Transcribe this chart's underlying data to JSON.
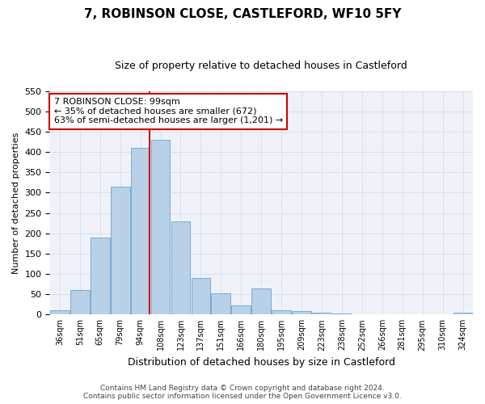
{
  "title_line1": "7, ROBINSON CLOSE, CASTLEFORD, WF10 5FY",
  "title_line2": "Size of property relative to detached houses in Castleford",
  "xlabel": "Distribution of detached houses by size in Castleford",
  "ylabel": "Number of detached properties",
  "bar_color": "#b8d0e8",
  "bar_edge_color": "#7aaad0",
  "categories": [
    "36sqm",
    "51sqm",
    "65sqm",
    "79sqm",
    "94sqm",
    "108sqm",
    "123sqm",
    "137sqm",
    "151sqm",
    "166sqm",
    "180sqm",
    "195sqm",
    "209sqm",
    "223sqm",
    "238sqm",
    "252sqm",
    "266sqm",
    "281sqm",
    "295sqm",
    "310sqm",
    "324sqm"
  ],
  "values": [
    10,
    60,
    190,
    315,
    410,
    430,
    230,
    90,
    52,
    22,
    65,
    10,
    8,
    5,
    3,
    1,
    1,
    1,
    1,
    1,
    4
  ],
  "ylim": [
    0,
    550
  ],
  "yticks": [
    0,
    50,
    100,
    150,
    200,
    250,
    300,
    350,
    400,
    450,
    500,
    550
  ],
  "vline_color": "#cc0000",
  "annotation_text": "7 ROBINSON CLOSE: 99sqm\n← 35% of detached houses are smaller (672)\n63% of semi-detached houses are larger (1,201) →",
  "annotation_box_color": "#ffffff",
  "annotation_box_edge": "#cc0000",
  "footer_line1": "Contains HM Land Registry data © Crown copyright and database right 2024.",
  "footer_line2": "Contains public sector information licensed under the Open Government Licence v3.0.",
  "bg_color": "#ffffff",
  "plot_bg_color": "#eef2f8",
  "grid_color": "#d0d8e8"
}
